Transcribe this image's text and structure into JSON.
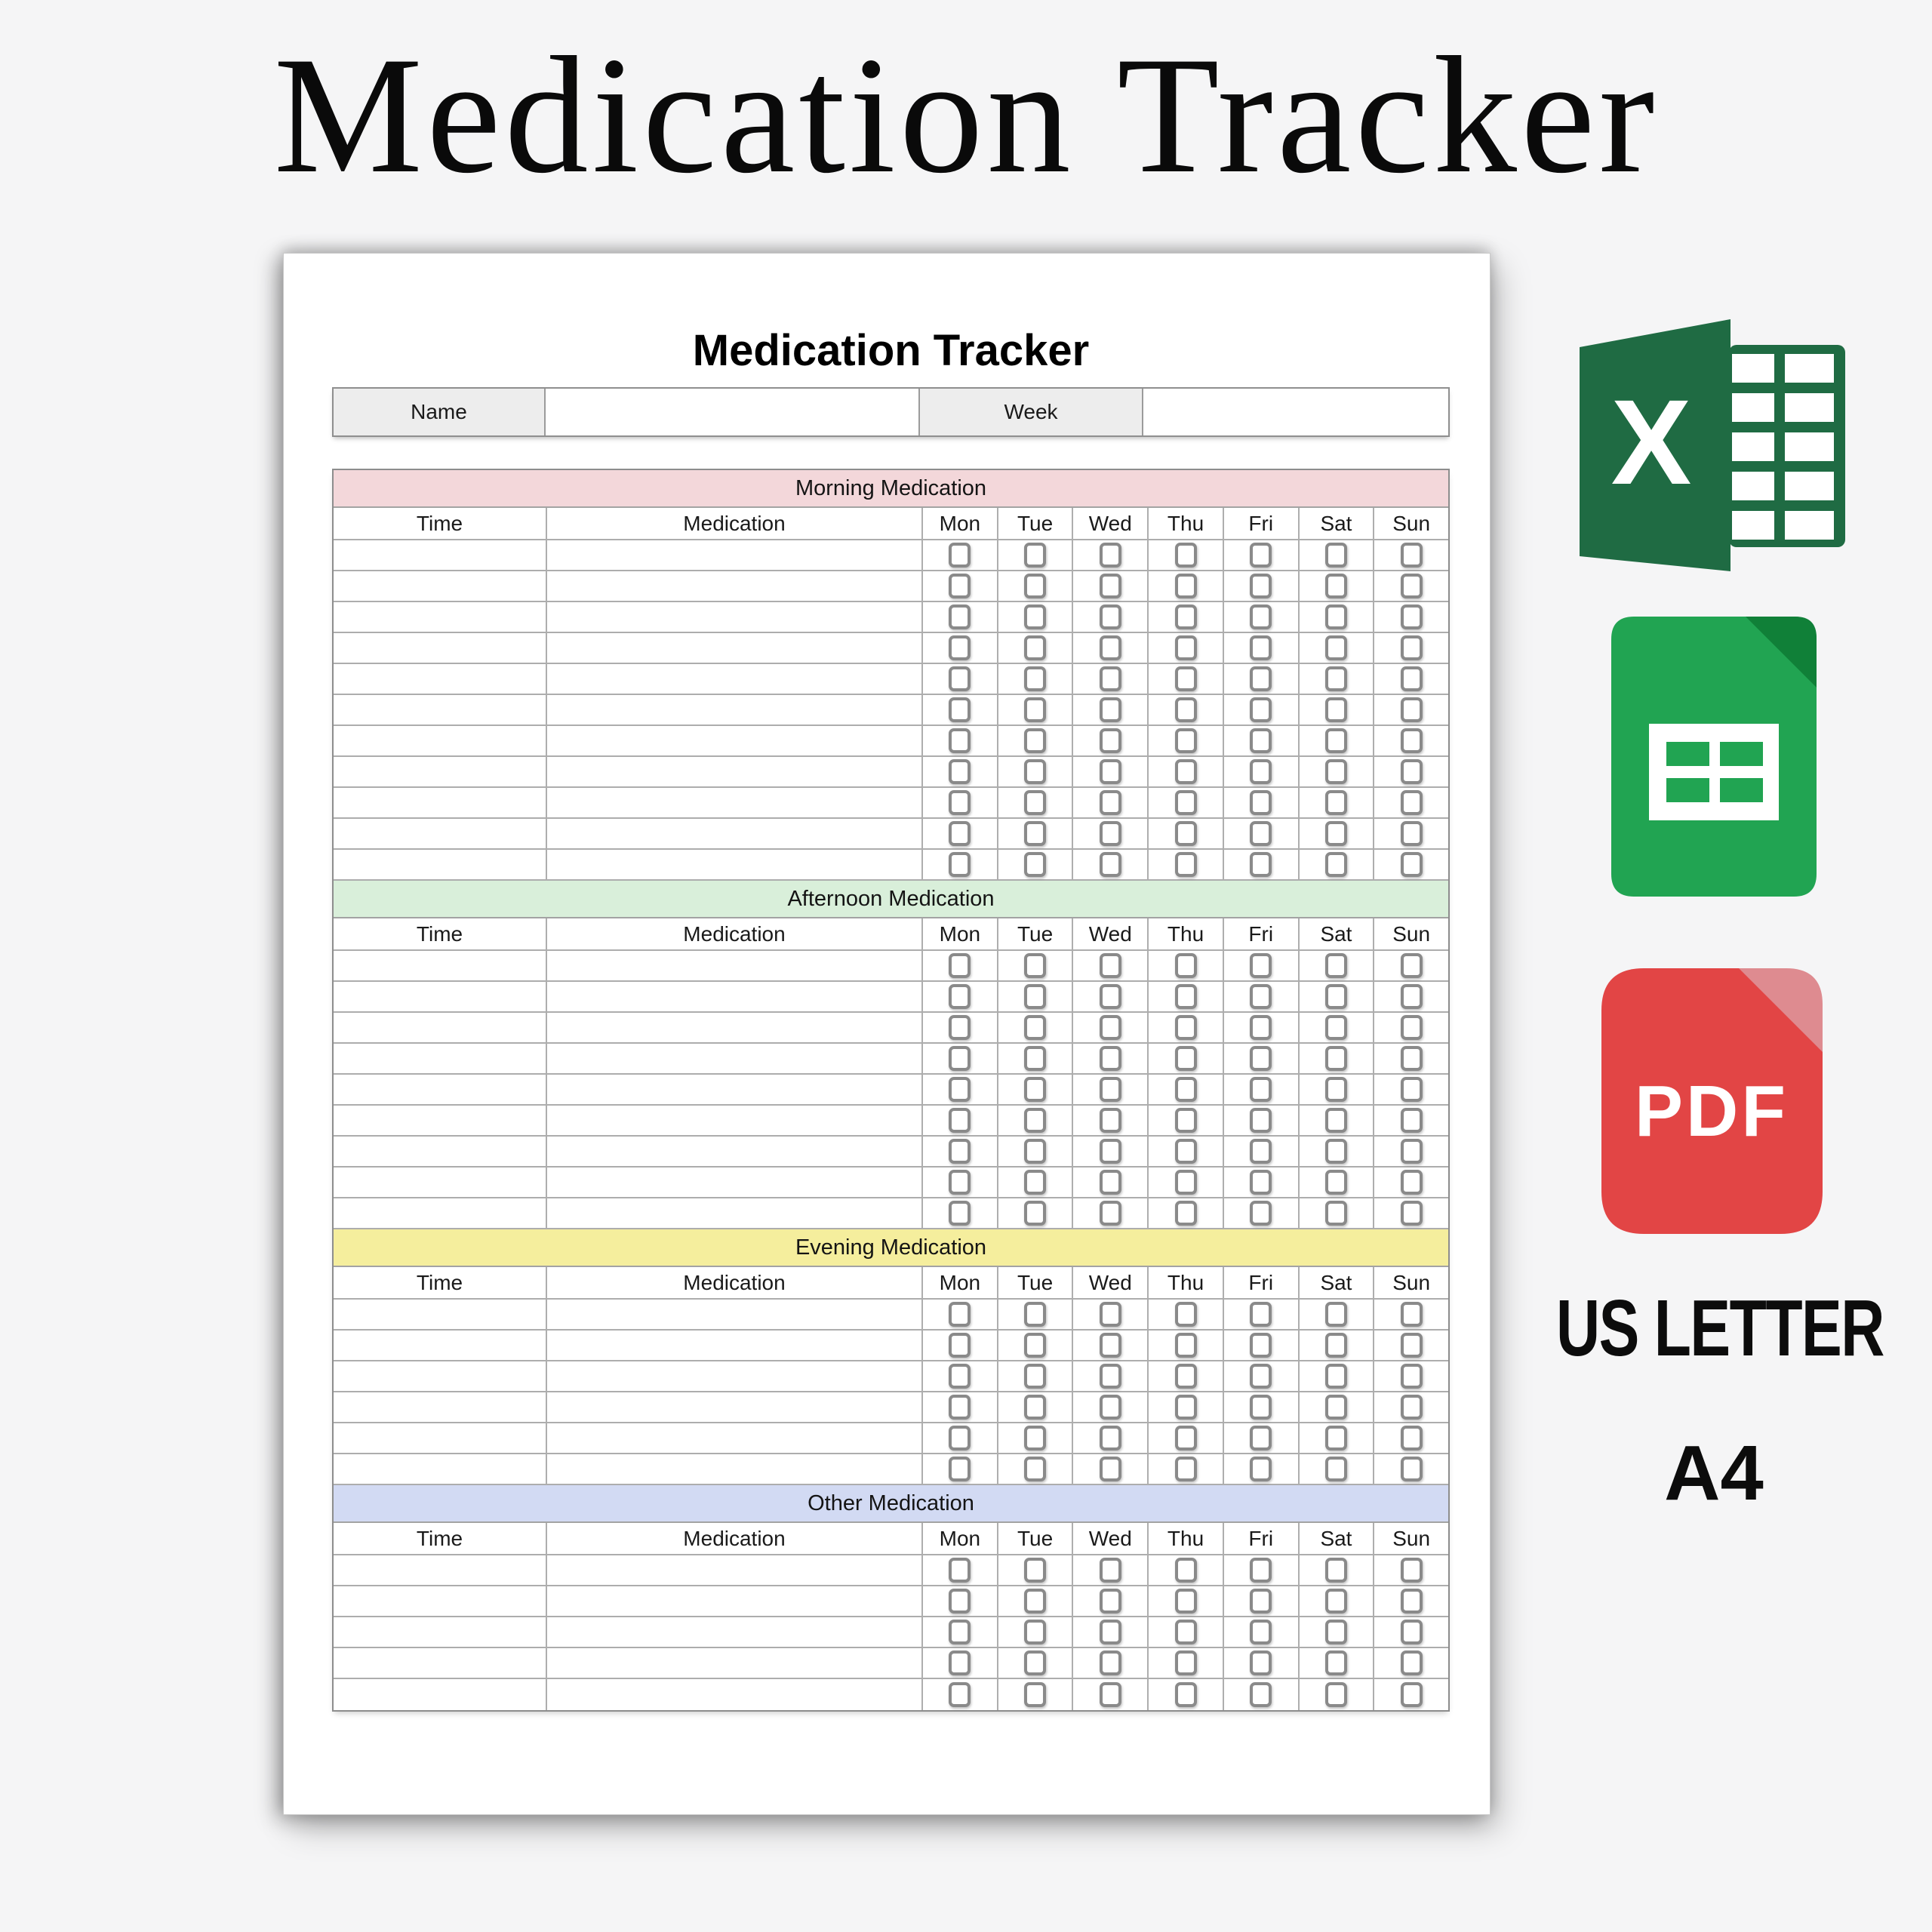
{
  "page": {
    "background_color": "#f5f5f6"
  },
  "hero": {
    "title": "Medication Tracker"
  },
  "document": {
    "title": "Medication Tracker",
    "name_label": "Name",
    "name_value": "",
    "week_label": "Week",
    "week_value": "",
    "columns": [
      "Time",
      "Medication",
      "Mon",
      "Tue",
      "Wed",
      "Thu",
      "Fri",
      "Sat",
      "Sun"
    ],
    "sections": [
      {
        "id": "morning",
        "title": "Morning Medication",
        "color": "#f3d7da",
        "rows": 11
      },
      {
        "id": "afternoon",
        "title": "Afternoon Medication",
        "color": "#d9efda",
        "rows": 9
      },
      {
        "id": "evening",
        "title": "Evening Medication",
        "color": "#f5ee9d",
        "rows": 6
      },
      {
        "id": "other",
        "title": "Other Medication",
        "color": "#d2daf3",
        "rows": 5
      }
    ]
  },
  "formats": {
    "excel": {
      "icon": "excel-icon",
      "letter": "X"
    },
    "sheets": {
      "icon": "google-sheets-icon"
    },
    "pdf": {
      "icon": "pdf-icon",
      "label": "PDF"
    },
    "paper_sizes": [
      "US LETTER",
      "A4"
    ]
  },
  "colors": {
    "excel_green": "#1f6b43",
    "sheets_green": "#21a452",
    "sheets_fold": "#108038",
    "pdf_red": "#e24545",
    "pdf_fold": "#de8b90",
    "grid_line": "#aeaeae",
    "checkbox_border": "#8a8a8a",
    "label_cell_bg": "#ededed"
  }
}
